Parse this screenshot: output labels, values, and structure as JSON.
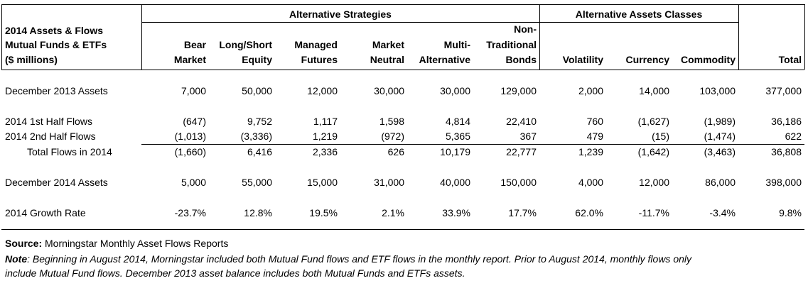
{
  "header": {
    "row_label_lines": [
      "2014 Assets & Flows",
      "Mutual Funds & ETFs",
      "($ millions)"
    ],
    "group_alt_strategies": "Alternative Strategies",
    "group_alt_assets": "Alternative Assets Classes",
    "columns": [
      {
        "l1": "",
        "l2": "Bear",
        "l3": "Market"
      },
      {
        "l1": "",
        "l2": "Long/Short",
        "l3": "Equity"
      },
      {
        "l1": "",
        "l2": "Managed",
        "l3": "Futures"
      },
      {
        "l1": "",
        "l2": "Market",
        "l3": "Neutral"
      },
      {
        "l1": "",
        "l2": "Multi-",
        "l3": "Alternative"
      },
      {
        "l1": "Non-",
        "l2": "Traditional",
        "l3": "Bonds"
      },
      {
        "l1": "",
        "l2": "",
        "l3": "Volatility"
      },
      {
        "l1": "",
        "l2": "",
        "l3": "Currency"
      },
      {
        "l1": "",
        "l2": "",
        "l3": "Commodity"
      },
      {
        "l1": "",
        "l2": "",
        "l3": "Total"
      }
    ]
  },
  "rows": [
    {
      "label": "December 2013 Assets",
      "values": [
        "7,000",
        "50,000",
        "12,000",
        "30,000",
        "30,000",
        "129,000",
        "2,000",
        "14,000",
        "103,000",
        "377,000"
      ]
    },
    {
      "label": "2014 1st Half Flows",
      "values": [
        "(647)",
        "9,752",
        "1,117",
        "1,598",
        "4,814",
        "22,410",
        "760",
        "(1,627)",
        "(1,989)",
        "36,186"
      ]
    },
    {
      "label": "2014 2nd Half Flows",
      "values": [
        "(1,013)",
        "(3,336)",
        "1,219",
        "(972)",
        "5,365",
        "367",
        "479",
        "(15)",
        "(1,474)",
        "622"
      ]
    },
    {
      "label": "Total Flows in 2014",
      "values": [
        "(1,660)",
        "6,416",
        "2,336",
        "626",
        "10,179",
        "22,777",
        "1,239",
        "(1,642)",
        "(3,463)",
        "36,808"
      ]
    },
    {
      "label": "December 2014 Assets",
      "values": [
        "5,000",
        "55,000",
        "15,000",
        "31,000",
        "40,000",
        "150,000",
        "4,000",
        "12,000",
        "86,000",
        "398,000"
      ]
    },
    {
      "label": "2014 Growth Rate",
      "values": [
        "-23.7%",
        "12.8%",
        "19.5%",
        "2.1%",
        "33.9%",
        "17.7%",
        "62.0%",
        "-11.7%",
        "-3.4%",
        "9.8%"
      ]
    }
  ],
  "footer": {
    "source_label": "Source:",
    "source_text": " Morningstar Monthly Asset Flows Reports",
    "note_label": "Note",
    "note_line1": ": Beginning in August 2014, Morningstar included both Mutual Fund flows and ETF flows in the monthly report. Prior to August 2014, monthly flows only",
    "note_line2": "include Mutual Fund flows. December 2013 asset balance includes both Mutual Funds and ETFs assets."
  }
}
